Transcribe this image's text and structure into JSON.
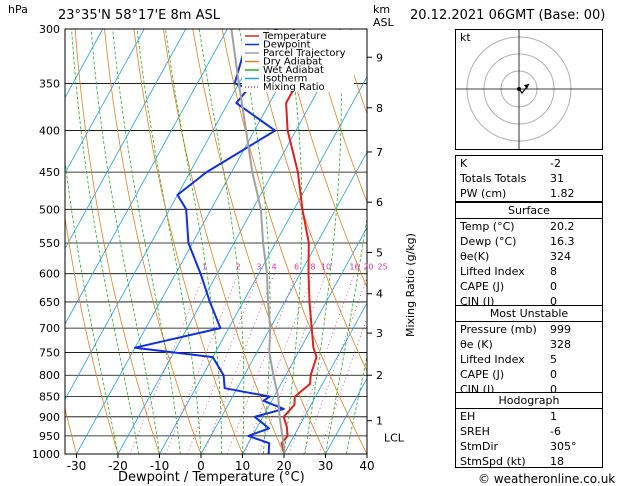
{
  "header": {
    "hpa_unit": "hPa",
    "location": "23°35'N  58°17'E  8m  ASL",
    "km_unit": "km",
    "asl_unit": "ASL",
    "datetime": "20.12.2021  06GMT  (Base: 00)"
  },
  "chart_data": {
    "type": "line",
    "xlabel": "Dewpoint / Temperature (°C)",
    "ylabel_right": "Mixing Ratio (g/kg)",
    "x_ticks": [
      -30,
      -20,
      -10,
      0,
      10,
      20,
      30,
      40
    ],
    "pressure_levels": [
      300,
      350,
      400,
      450,
      500,
      550,
      600,
      650,
      700,
      750,
      800,
      850,
      900,
      950,
      1000
    ],
    "km_ticks": [
      {
        "label": "1",
        "p": 910
      },
      {
        "label": "2",
        "p": 800
      },
      {
        "label": "3",
        "p": 710
      },
      {
        "label": "4",
        "p": 635
      },
      {
        "label": "5",
        "p": 565
      },
      {
        "label": "6",
        "p": 490
      },
      {
        "label": "7",
        "p": 425
      },
      {
        "label": "8",
        "p": 375
      },
      {
        "label": "9",
        "p": 325
      }
    ],
    "lcl_label": "LCL",
    "lcl_p": 955,
    "mixing_ratio_labels": [
      1,
      2,
      3,
      4,
      6,
      8,
      10,
      16,
      20,
      25
    ],
    "legend": [
      "Temperature",
      "Dewpoint",
      "Parcel Trajectory",
      "Dry Adiabat",
      "Wet Adiabat",
      "Isotherm",
      "Mixing Ratio"
    ],
    "colors": {
      "temperature": "#e02020",
      "dewpoint": "#1030e0",
      "parcel": "#a0a0a0",
      "dry_adiabat": "#e08020",
      "wet_adiabat": "#20b020",
      "isotherm": "#20a0e0",
      "mixing_ratio": "#e030a0"
    },
    "series": [
      {
        "name": "Temperature",
        "points": [
          [
            1000,
            20.2
          ],
          [
            970,
            18
          ],
          [
            950,
            18.5
          ],
          [
            925,
            17
          ],
          [
            900,
            15
          ],
          [
            870,
            16
          ],
          [
            850,
            15
          ],
          [
            820,
            17
          ],
          [
            800,
            16
          ],
          [
            760,
            15
          ],
          [
            740,
            13
          ],
          [
            700,
            10
          ],
          [
            650,
            6
          ],
          [
            600,
            2
          ],
          [
            550,
            -2
          ],
          [
            500,
            -8
          ],
          [
            450,
            -14
          ],
          [
            400,
            -22
          ],
          [
            370,
            -26
          ],
          [
            350,
            -26
          ],
          [
            320,
            -30
          ],
          [
            300,
            -34
          ]
        ]
      },
      {
        "name": "Dewpoint",
        "points": [
          [
            1000,
            16.3
          ],
          [
            970,
            15
          ],
          [
            950,
            9
          ],
          [
            930,
            13
          ],
          [
            900,
            8
          ],
          [
            880,
            14
          ],
          [
            860,
            8
          ],
          [
            850,
            9
          ],
          [
            830,
            -3
          ],
          [
            800,
            -5
          ],
          [
            760,
            -10
          ],
          [
            740,
            -30
          ],
          [
            700,
            -12
          ],
          [
            650,
            -18
          ],
          [
            600,
            -24
          ],
          [
            550,
            -31
          ],
          [
            500,
            -36
          ],
          [
            480,
            -40
          ],
          [
            450,
            -36
          ],
          [
            400,
            -25
          ],
          [
            370,
            -38
          ],
          [
            355,
            -37
          ],
          [
            350,
            -41
          ],
          [
            320,
            -43
          ],
          [
            300,
            -38
          ]
        ]
      },
      {
        "name": "Parcel Trajectory",
        "points": [
          [
            1000,
            20.2
          ],
          [
            955,
            17.5
          ],
          [
            900,
            14
          ],
          [
            850,
            11
          ],
          [
            800,
            7
          ],
          [
            750,
            3
          ],
          [
            700,
            0
          ],
          [
            650,
            -4
          ],
          [
            600,
            -8
          ],
          [
            550,
            -13
          ],
          [
            500,
            -18
          ],
          [
            450,
            -25
          ],
          [
            400,
            -32
          ],
          [
            350,
            -40
          ],
          [
            300,
            -49
          ]
        ]
      }
    ]
  },
  "stats": {
    "rows": [
      {
        "label": "K",
        "value": "-2"
      },
      {
        "label": "Totals Totals",
        "value": "31"
      },
      {
        "label": "PW (cm)",
        "value": "1.82"
      }
    ]
  },
  "surface": {
    "title": "Surface",
    "rows": [
      {
        "label": "Temp (°C)",
        "value": "20.2"
      },
      {
        "label": "Dewp (°C)",
        "value": "16.3"
      },
      {
        "label": "θe(K)",
        "value": "324"
      },
      {
        "label": "Lifted Index",
        "value": "8"
      },
      {
        "label": "CAPE (J)",
        "value": "0"
      },
      {
        "label": "CIN (J)",
        "value": "0"
      }
    ]
  },
  "most_unstable": {
    "title": "Most Unstable",
    "rows": [
      {
        "label": "Pressure (mb)",
        "value": "999"
      },
      {
        "label": "θe (K)",
        "value": "328"
      },
      {
        "label": "Lifted Index",
        "value": "5"
      },
      {
        "label": "CAPE (J)",
        "value": "0"
      },
      {
        "label": "CIN (J)",
        "value": "0"
      }
    ]
  },
  "hodograph": {
    "title": "Hodograph",
    "kt_label": "kt",
    "rows": [
      {
        "label": "EH",
        "value": "1"
      },
      {
        "label": "SREH",
        "value": "-6"
      },
      {
        "label": "StmDir",
        "value": "305°"
      },
      {
        "label": "StmSpd (kt)",
        "value": "18"
      }
    ]
  },
  "footer": {
    "copyright": "© weatheronline.co.uk"
  }
}
